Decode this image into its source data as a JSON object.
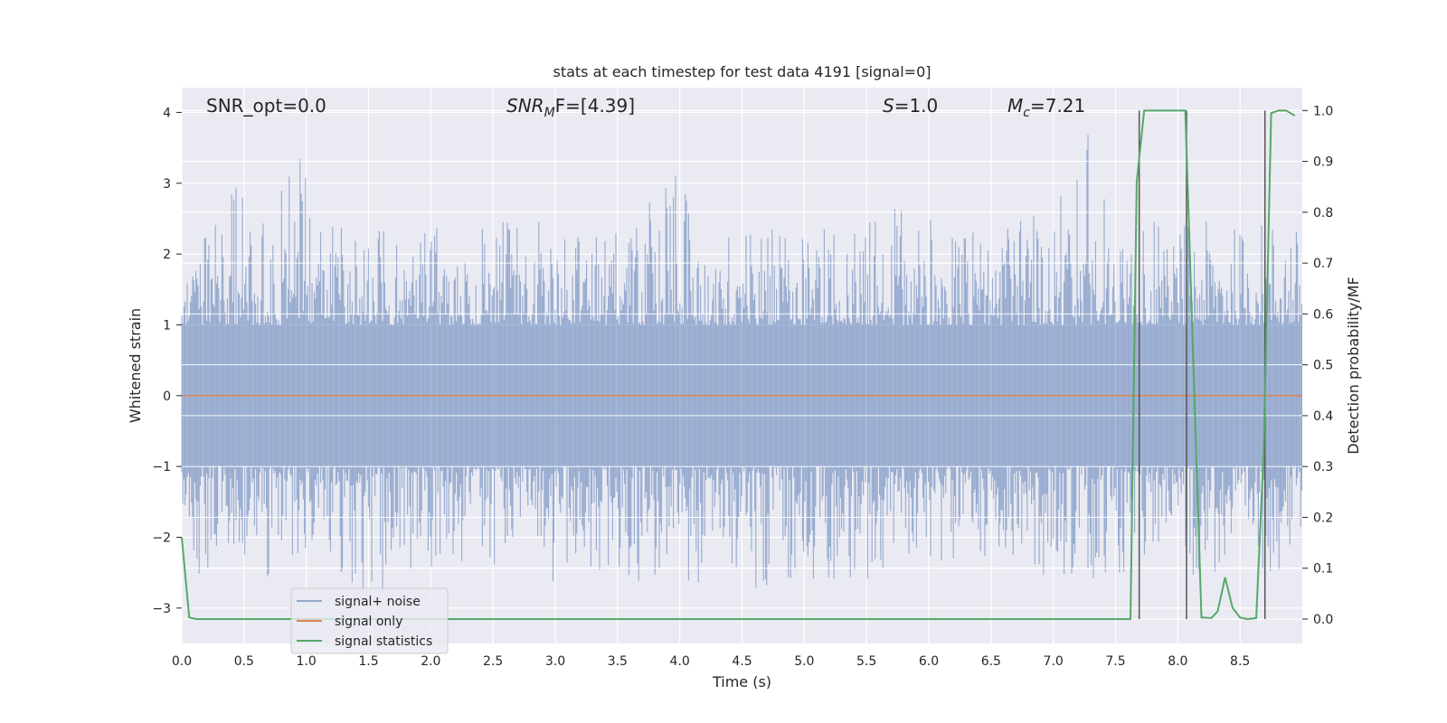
{
  "chart_data": {
    "type": "line",
    "title": "stats at each timestep for test data 4191 [signal=0]",
    "xlabel": "Time (s)",
    "ylabel": "Whitened strain",
    "y2label": "Detection probability/MF",
    "xlim": [
      0.0,
      9.0
    ],
    "ylim": [
      -3.5,
      4.35
    ],
    "y2lim": [
      -0.048,
      1.045
    ],
    "xticks": [
      0.0,
      0.5,
      1.0,
      1.5,
      2.0,
      2.5,
      3.0,
      3.5,
      4.0,
      4.5,
      5.0,
      5.5,
      6.0,
      6.5,
      7.0,
      7.5,
      8.0,
      8.5
    ],
    "xtick_labels": [
      "0.0",
      "0.5",
      "1.0",
      "1.5",
      "2.0",
      "2.5",
      "3.0",
      "3.5",
      "4.0",
      "4.5",
      "5.0",
      "5.5",
      "6.0",
      "6.5",
      "7.0",
      "7.5",
      "8.0",
      "8.5"
    ],
    "yticks": [
      -3,
      -2,
      -1,
      0,
      1,
      2,
      3,
      4
    ],
    "ytick_labels": [
      "−3",
      "−2",
      "−1",
      "0",
      "1",
      "2",
      "3",
      "4"
    ],
    "y2ticks": [
      0.0,
      0.1,
      0.2,
      0.3,
      0.4,
      0.5,
      0.6,
      0.7,
      0.8,
      0.9,
      1.0
    ],
    "y2tick_labels": [
      "0.0",
      "0.1",
      "0.2",
      "0.3",
      "0.4",
      "0.5",
      "0.6",
      "0.7",
      "0.8",
      "0.9",
      "1.0"
    ],
    "grid": true,
    "legend_position": "lower-left",
    "annotations": {
      "snr_opt": "SNR_opt=0.0",
      "snr_mf_main": "SNR",
      "snr_mf_sub": "M",
      "snr_mf_rest": "F=[4.39]",
      "s_main": "S",
      "s_rest": "=1.0",
      "mc_main": "M",
      "mc_sub": "c",
      "mc_rest": "=7.21"
    },
    "series": [
      {
        "name": "signal+ noise",
        "color": "#4c72b0",
        "axis": "left",
        "envelope_upper": [
          [
            0.0,
            1.4
          ],
          [
            0.1,
            2.0
          ],
          [
            0.25,
            2.4
          ],
          [
            0.49,
            3.2
          ],
          [
            0.6,
            2.3
          ],
          [
            0.96,
            3.45
          ],
          [
            1.2,
            2.4
          ],
          [
            1.5,
            2.3
          ],
          [
            2.0,
            2.45
          ],
          [
            2.3,
            2.2
          ],
          [
            2.5,
            2.5
          ],
          [
            3.0,
            2.5
          ],
          [
            3.5,
            2.3
          ],
          [
            3.97,
            3.15
          ],
          [
            4.2,
            2.3
          ],
          [
            4.5,
            2.4
          ],
          [
            5.0,
            2.5
          ],
          [
            5.5,
            2.5
          ],
          [
            5.9,
            2.75
          ],
          [
            6.2,
            2.3
          ],
          [
            6.5,
            2.55
          ],
          [
            7.0,
            2.6
          ],
          [
            7.29,
            4.0
          ],
          [
            7.5,
            2.4
          ],
          [
            7.7,
            2.55
          ],
          [
            8.0,
            2.5
          ],
          [
            8.5,
            2.4
          ],
          [
            8.9,
            2.6
          ],
          [
            9.0,
            2.2
          ]
        ],
        "envelope_lower": [
          [
            0.0,
            -1.5
          ],
          [
            0.1,
            -2.55
          ],
          [
            0.3,
            -2.4
          ],
          [
            0.6,
            -2.5
          ],
          [
            0.9,
            -2.75
          ],
          [
            1.3,
            -2.8
          ],
          [
            1.55,
            -2.9
          ],
          [
            1.8,
            -2.55
          ],
          [
            2.0,
            -2.45
          ],
          [
            2.5,
            -2.45
          ],
          [
            3.0,
            -2.65
          ],
          [
            3.5,
            -2.55
          ],
          [
            4.0,
            -2.75
          ],
          [
            4.5,
            -2.55
          ],
          [
            4.63,
            -2.9
          ],
          [
            5.0,
            -2.6
          ],
          [
            5.5,
            -2.6
          ],
          [
            6.0,
            -2.4
          ],
          [
            6.5,
            -2.5
          ],
          [
            7.0,
            -2.55
          ],
          [
            7.35,
            -2.7
          ],
          [
            7.5,
            -2.5
          ],
          [
            8.0,
            -2.55
          ],
          [
            8.5,
            -2.6
          ],
          [
            9.0,
            -2.4
          ]
        ]
      },
      {
        "name": "signal only",
        "color": "#dd8452",
        "axis": "left",
        "x": [
          0.0,
          9.0
        ],
        "y": [
          0.0,
          0.0
        ]
      },
      {
        "name": "signal statistics",
        "color": "#55a868",
        "axis": "right",
        "x": [
          0.0,
          0.06,
          0.12,
          7.62,
          7.67,
          7.73,
          8.06,
          8.19,
          8.27,
          8.32,
          8.38,
          8.44,
          8.5,
          8.56,
          8.63,
          8.69,
          8.75,
          8.81,
          8.87,
          8.94
        ],
        "y": [
          0.16,
          0.003,
          0.0,
          0.0,
          0.86,
          1.0,
          1.0,
          0.003,
          0.002,
          0.015,
          0.082,
          0.022,
          0.003,
          0.0,
          0.002,
          0.33,
          0.995,
          1.0,
          1.0,
          0.99
        ]
      }
    ],
    "vertical_markers_x": [
      7.69,
      8.07,
      8.7
    ]
  }
}
